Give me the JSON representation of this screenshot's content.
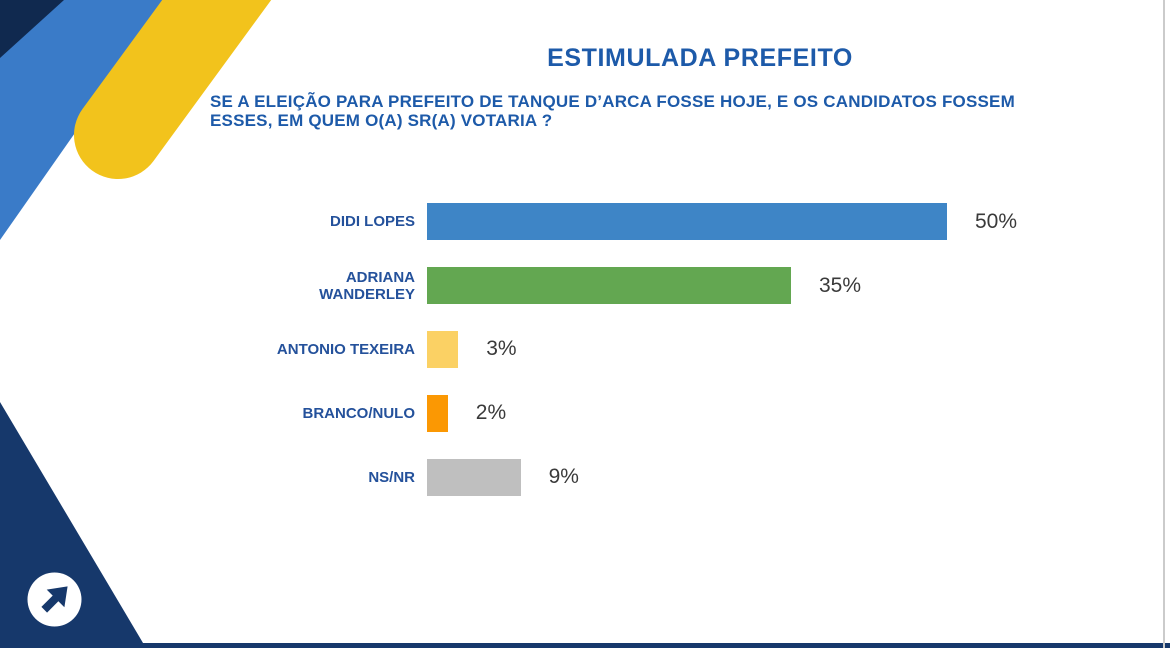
{
  "slide": {
    "title": "ESTIMULADA PREFEITO",
    "question_lines": [
      "SE A ELEIÇÃO PARA PREFEITO DE TANQUE D’ARCA FOSSE HOJE, E OS CANDIDATOS FOSSEM",
      "ESSES, EM QUEM O(A) SR(A) VOTARIA ?"
    ]
  },
  "chart_data": {
    "type": "bar",
    "orientation": "horizontal",
    "title": "ESTIMULADA PREFEITO",
    "categories": [
      "DIDI LOPES",
      "ADRIANA WANDERLEY",
      "ANTONIO TEXEIRA",
      "BRANCO/NULO",
      "NS/NR"
    ],
    "values": [
      50,
      35,
      3,
      2,
      9
    ],
    "value_labels": [
      "50%",
      "35%",
      "3%",
      "2%",
      "9%"
    ],
    "value_suffix": "%",
    "bar_colors": [
      "#3E85C6",
      "#63A751",
      "#FBD164",
      "#FB9803",
      "#BFBFBF"
    ],
    "xlim": [
      0,
      55
    ],
    "grid": false,
    "legend": false,
    "xlabel": "",
    "ylabel": ""
  },
  "decor": {
    "navy": "#16386B",
    "navy_dark": "#10294F",
    "band_blue": "#3A7BC8",
    "stripe_yellow": "#F2C31C",
    "edge_gray": "#CBCBCB",
    "title_blue": "#1D5AA9"
  },
  "icons": {
    "corner_arrow": "up-right-arrow-icon"
  }
}
